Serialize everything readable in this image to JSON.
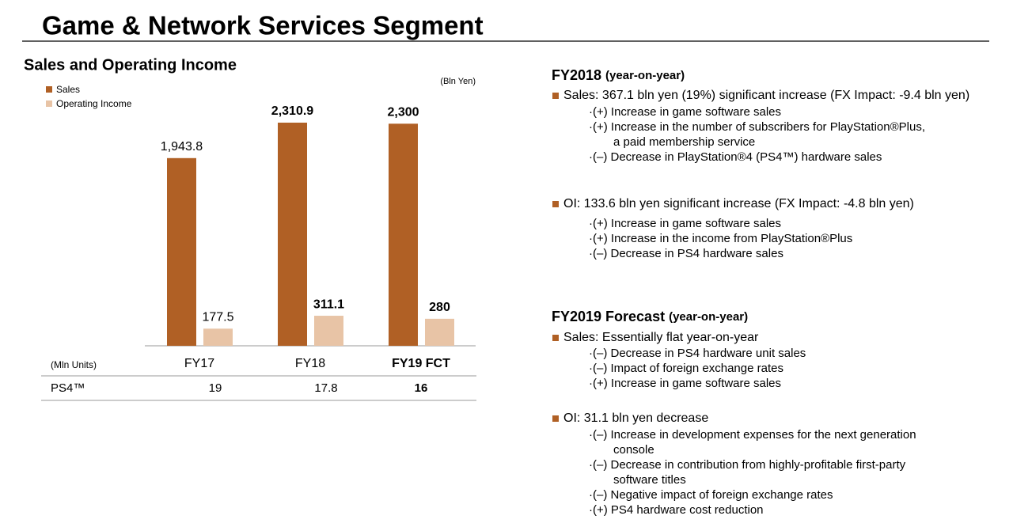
{
  "header": {
    "title": "Game & Network Services Segment"
  },
  "chart_data": {
    "type": "bar",
    "title": "Sales and Operating Income",
    "unit": "(Bln Yen)",
    "categories": [
      "FY17",
      "FY18",
      "FY19 FCT"
    ],
    "series": [
      {
        "name": "Sales",
        "color": "#b06025",
        "values": [
          1943.8,
          2310.9,
          2300
        ],
        "value_labels": [
          "1,943.8",
          "2,310.9",
          "2,300"
        ]
      },
      {
        "name": "Operating Income",
        "color": "#e8c4a6",
        "values": [
          177.5,
          311.1,
          280
        ]
      }
    ]
  },
  "table": {
    "unit_label": "(Mln Units)",
    "row_label": "PS4™",
    "values": [
      19,
      17.8,
      16
    ]
  },
  "notes": [
    {
      "heading": "FY2018",
      "heading_note": "(year-on-year)",
      "items": [
        {
          "text": "Sales: 367.1 bln yen (19%) significant increase (FX Impact: -9.4 bln yen)",
          "subitems": [
            [
              "·(+) Increase in game software sales"
            ],
            [
              "·(+) Increase in the number of subscribers for PlayStation®Plus,",
              "a paid membership service"
            ],
            [
              "·(–) Decrease in PlayStation®4 (PS4™) hardware sales"
            ]
          ]
        },
        {
          "text": "OI: 133.6 bln yen significant increase (FX Impact: -4.8 bln yen)",
          "subitems": [
            [
              "·(+) Increase in game software sales"
            ],
            [
              "·(+) Increase in the income from PlayStation®Plus"
            ],
            [
              "·(–) Decrease in PS4 hardware sales"
            ]
          ]
        }
      ]
    },
    {
      "heading": "FY2019 Forecast",
      "heading_note": "(year-on-year)",
      "items": [
        {
          "text": "Sales: Essentially flat year-on-year",
          "subitems": [
            [
              "·(–) Decrease in PS4 hardware unit sales"
            ],
            [
              "·(–) Impact of foreign exchange rates"
            ],
            [
              "·(+) Increase in game software sales"
            ]
          ]
        },
        {
          "text": "OI: 31.1 bln yen decrease",
          "subitems": [
            [
              "·(–) Increase in development expenses for the next generation",
              "console"
            ],
            [
              "·(–) Decrease in contribution from highly-profitable first-party",
              "software titles"
            ],
            [
              "·(–) Negative impact of foreign exchange rates"
            ],
            [
              "·(+) PS4 hardware cost reduction"
            ]
          ]
        }
      ]
    }
  ]
}
